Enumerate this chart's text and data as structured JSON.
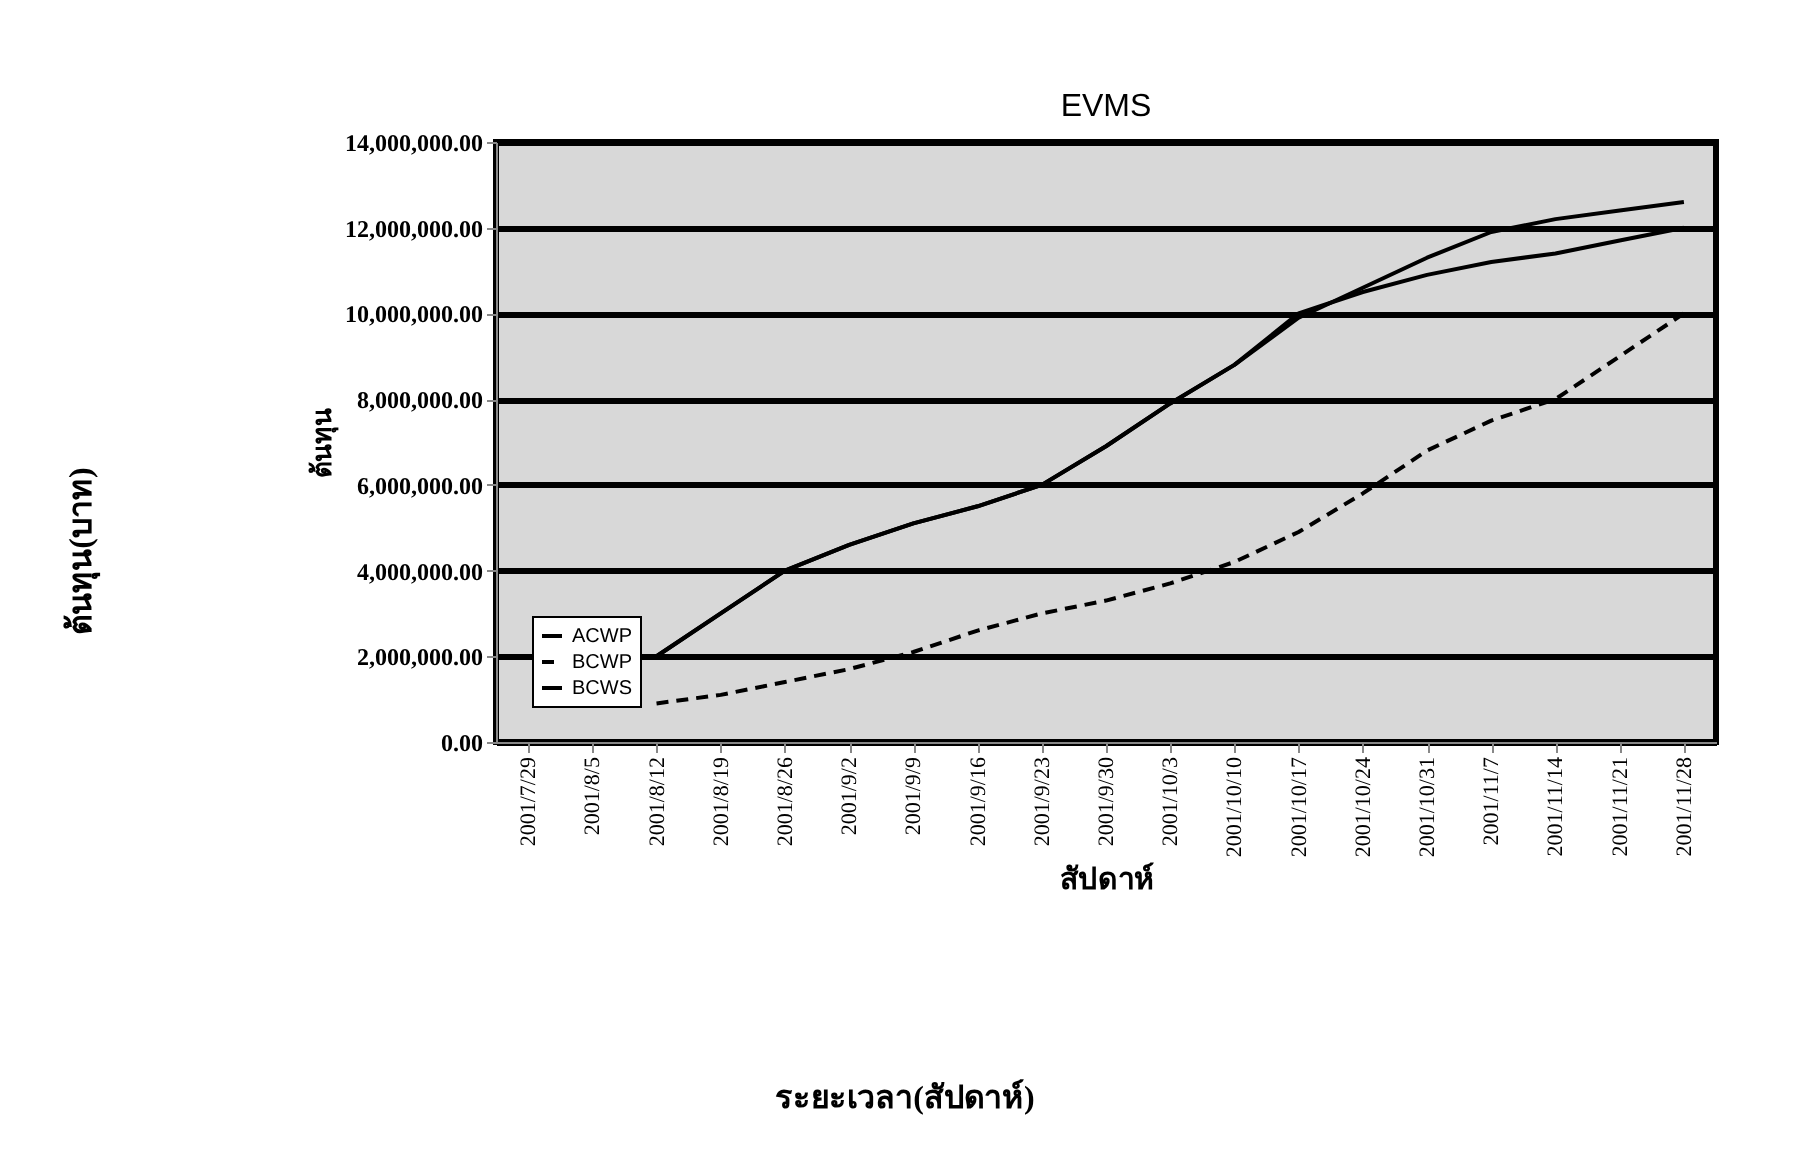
{
  "chart_data": {
    "type": "line",
    "title": "EVMS",
    "xlabel": "สัปดาห์",
    "ylabel": "ต้นทุน",
    "annotations": [
      "ต้นทุน(บาท)",
      "ระยะเวลา(สัปดาห์)"
    ],
    "categories": [
      "2001/7/29",
      "2001/8/5",
      "2001/8/12",
      "2001/8/19",
      "2001/8/26",
      "2001/9/2",
      "2001/9/9",
      "2001/9/16",
      "2001/9/23",
      "2001/9/30",
      "2001/10/3",
      "2001/10/10",
      "2001/10/17",
      "2001/10/24",
      "2001/10/31",
      "2001/11/7",
      "2001/11/14",
      "2001/11/21",
      "2001/11/28"
    ],
    "series": [
      {
        "name": "ACWP",
        "color": "#000000",
        "line_style": "solid",
        "values": [
          null,
          null,
          2000000,
          3000000,
          4000000,
          4600000,
          5100000,
          5500000,
          6000000,
          6900000,
          7900000,
          8800000,
          9900000,
          10600000,
          11300000,
          11900000,
          12200000,
          12400000,
          12600000
        ]
      },
      {
        "name": "BCWP",
        "color": "#000000",
        "line_style": "dashed",
        "values": [
          null,
          null,
          900000,
          1100000,
          1400000,
          1700000,
          2100000,
          2600000,
          3000000,
          3300000,
          3700000,
          4200000,
          4900000,
          5800000,
          6800000,
          7500000,
          8000000,
          9000000,
          10000000
        ]
      },
      {
        "name": "BCWS",
        "color": "#000000",
        "line_style": "solid",
        "values": [
          null,
          null,
          2000000,
          3000000,
          4000000,
          4600000,
          5100000,
          5500000,
          6000000,
          6900000,
          7900000,
          8800000,
          10000000,
          10500000,
          10900000,
          11200000,
          11400000,
          11700000,
          12000000
        ]
      }
    ],
    "ylim": [
      0,
      14000000
    ],
    "yticks": [
      {
        "value": 0,
        "label": "0.00"
      },
      {
        "value": 2000000,
        "label": "2,000,000.00"
      },
      {
        "value": 4000000,
        "label": "4,000,000.00"
      },
      {
        "value": 6000000,
        "label": "6,000,000.00"
      },
      {
        "value": 8000000,
        "label": "8,000,000.00"
      },
      {
        "value": 10000000,
        "label": "10,000,000.00"
      },
      {
        "value": 12000000,
        "label": "12,000,000.00"
      },
      {
        "value": 14000000,
        "label": "14,000,000.00"
      }
    ],
    "grid": "y",
    "legend": "bottom left"
  }
}
